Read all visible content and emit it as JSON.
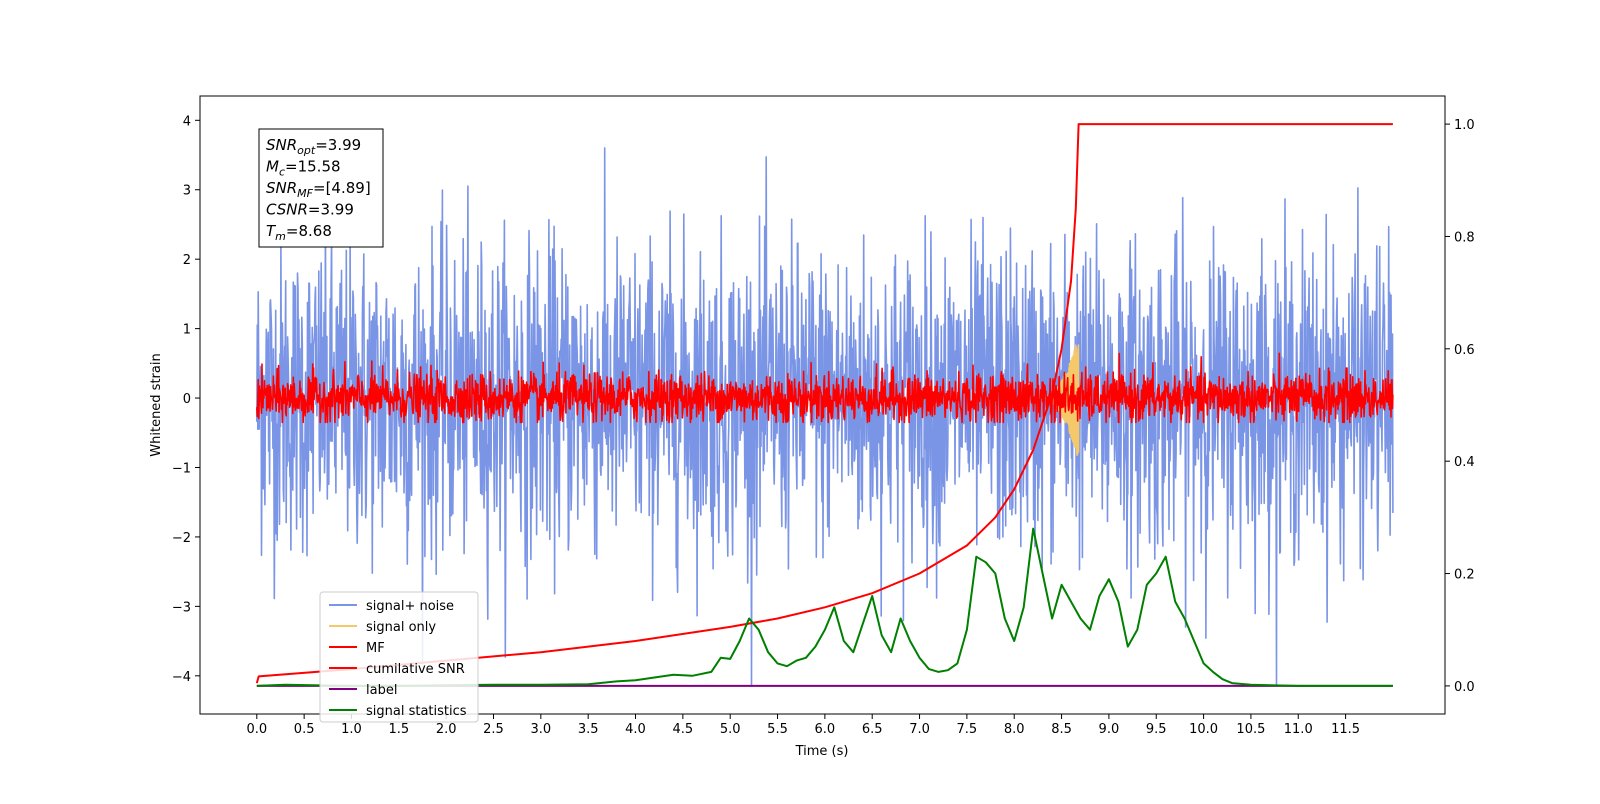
{
  "chart_data": {
    "type": "line",
    "xlabel": "Time (s)",
    "ylabel": "Whitened strain",
    "xlim": [
      -0.6,
      12.55
    ],
    "ylim": [
      -4.55,
      4.35
    ],
    "y2lim": [
      -0.05,
      1.05
    ],
    "x_ticks": [
      "0.0",
      "0.5",
      "1.0",
      "1.5",
      "2.0",
      "2.5",
      "3.0",
      "3.5",
      "4.0",
      "4.5",
      "5.0",
      "5.5",
      "6.0",
      "6.5",
      "7.0",
      "7.5",
      "8.0",
      "8.5",
      "9.0",
      "9.5",
      "10.0",
      "10.5",
      "11.0",
      "11.5"
    ],
    "y_ticks": [
      "4",
      "3",
      "2",
      "1",
      "0",
      "−1",
      "−2",
      "−3",
      "−4"
    ],
    "y2_ticks": [
      "1.0",
      "0.8",
      "0.6",
      "0.4",
      "0.2",
      "0.0"
    ],
    "grid": false,
    "legend_position": "lower-left",
    "annotation": [
      {
        "base": "SNR",
        "sub": "opt",
        "value": "=3.99"
      },
      {
        "base": "M",
        "sub": "c",
        "value": "=15.58"
      },
      {
        "base": "SNR",
        "sub": "MF",
        "value": "=[4.89]"
      },
      {
        "base": "CSNR",
        "sub": "",
        "value": "=3.99"
      },
      {
        "base": "T",
        "sub": "m",
        "value": "=8.68"
      }
    ],
    "series": [
      {
        "name": "signal+ noise",
        "color": "#7b95e6",
        "axis": "left",
        "kind": "noise",
        "std": 1.1,
        "x_range": [
          0,
          12
        ],
        "shape": "gaussian noise, range about -4.1 to 4.0"
      },
      {
        "name": "signal only",
        "color": "#f5c96a",
        "axis": "left",
        "kind": "chirp",
        "x_range": [
          8.3,
          8.68
        ],
        "amplitude_peak": 0.9
      },
      {
        "name": "MF",
        "color": "#ff0000",
        "axis": "left",
        "kind": "noise",
        "std": 0.18,
        "x_range": [
          0,
          12
        ],
        "shape": "narrow noise band around 0, about -0.35 to 0.9"
      },
      {
        "name": "cumilative SNR",
        "color": "#ff0000",
        "axis": "right",
        "x": [
          0,
          0.02,
          1,
          2,
          3,
          4,
          5,
          5.5,
          6,
          6.5,
          7,
          7.5,
          7.8,
          8,
          8.2,
          8.4,
          8.5,
          8.6,
          8.65,
          8.68,
          12
        ],
        "y": [
          0.005,
          0.017,
          0.03,
          0.045,
          0.06,
          0.08,
          0.105,
          0.12,
          0.14,
          0.165,
          0.2,
          0.25,
          0.3,
          0.35,
          0.42,
          0.52,
          0.6,
          0.72,
          0.85,
          1.0,
          1.0
        ]
      },
      {
        "name": "label",
        "color": "#800080",
        "axis": "right",
        "x": [
          0,
          12
        ],
        "y": [
          0.0,
          0.0
        ]
      },
      {
        "name": "signal statistics",
        "color": "#008000",
        "axis": "right",
        "x": [
          0,
          0.3,
          0.6,
          1,
          1.5,
          2,
          2.5,
          3,
          3.5,
          3.8,
          4,
          4.2,
          4.4,
          4.6,
          4.8,
          4.9,
          5.0,
          5.1,
          5.2,
          5.3,
          5.4,
          5.5,
          5.6,
          5.7,
          5.8,
          5.9,
          6.0,
          6.1,
          6.2,
          6.3,
          6.4,
          6.5,
          6.6,
          6.7,
          6.8,
          6.9,
          7.0,
          7.1,
          7.2,
          7.3,
          7.4,
          7.5,
          7.6,
          7.7,
          7.8,
          7.9,
          8.0,
          8.1,
          8.2,
          8.3,
          8.4,
          8.5,
          8.6,
          8.7,
          8.8,
          8.9,
          9.0,
          9.1,
          9.2,
          9.3,
          9.4,
          9.5,
          9.6,
          9.7,
          9.8,
          9.9,
          10.0,
          10.1,
          10.2,
          10.3,
          10.5,
          11,
          12
        ],
        "y": [
          0.0,
          0.002,
          0.001,
          0.0,
          0.0,
          0.001,
          0.002,
          0.002,
          0.003,
          0.008,
          0.01,
          0.015,
          0.02,
          0.018,
          0.025,
          0.05,
          0.048,
          0.08,
          0.12,
          0.1,
          0.06,
          0.04,
          0.035,
          0.045,
          0.05,
          0.07,
          0.1,
          0.14,
          0.08,
          0.06,
          0.11,
          0.16,
          0.09,
          0.06,
          0.12,
          0.08,
          0.05,
          0.03,
          0.025,
          0.028,
          0.04,
          0.1,
          0.23,
          0.22,
          0.2,
          0.12,
          0.08,
          0.14,
          0.28,
          0.2,
          0.12,
          0.18,
          0.15,
          0.12,
          0.1,
          0.16,
          0.19,
          0.15,
          0.07,
          0.1,
          0.18,
          0.2,
          0.23,
          0.15,
          0.12,
          0.08,
          0.04,
          0.025,
          0.012,
          0.005,
          0.002,
          0.0,
          0.0
        ]
      }
    ]
  }
}
